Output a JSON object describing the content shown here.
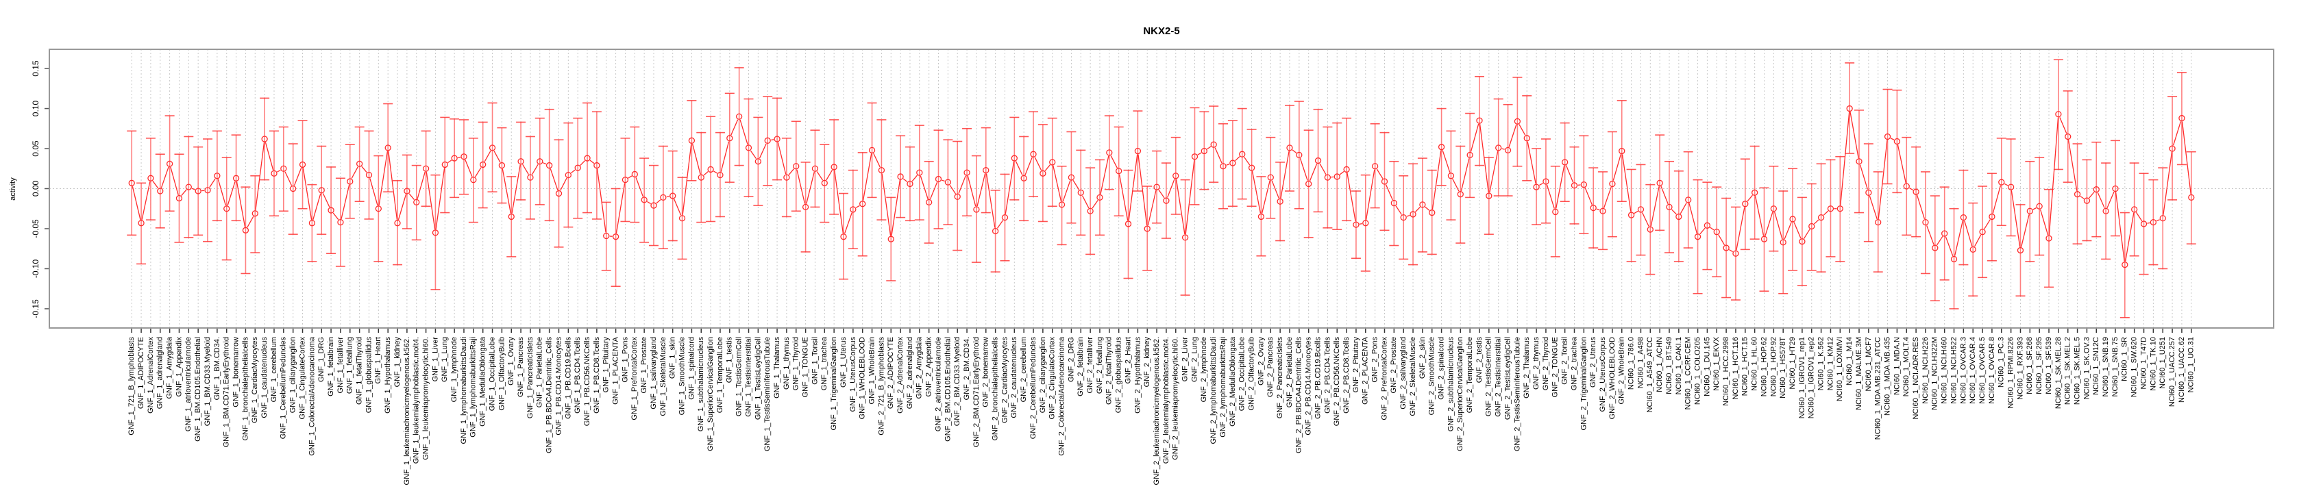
{
  "chart_data": {
    "type": "line",
    "title": "NKX2-5",
    "xlabel": "",
    "ylabel": "activity",
    "ylim": [
      -0.174,
      0.174
    ],
    "yticks": [
      "-0.15",
      "-0.10",
      "-0.05",
      "0.00",
      "0.05",
      "0.10",
      "0.15"
    ],
    "ytick_values": [
      -0.15,
      -0.1,
      -0.05,
      0.0,
      0.05,
      0.1,
      0.15
    ],
    "grid": "vertical dotted per category, horizontal dotted at 0",
    "colors": {
      "series": "#ff2a2a",
      "errorbar": "#ff8080",
      "grid": "#c8c8c8",
      "axis": "#555555",
      "frame": "#999999"
    },
    "categories": [
      "GNF_1_721_B_lymphoblasts",
      "GNF_1_ADIPOCYTE",
      "GNF_1_AdrenalCortex",
      "GNF_1_adrenalgland",
      "GNF_1_Amygdala",
      "GNF_1_Appendix",
      "GNF_1_atrioventricularnode",
      "GNF_1_BM.CD105.Endothelial",
      "GNF_1_BM.CD33.Myeloid",
      "GNF_1_BM.CD34.",
      "GNF_1_BM.CD71.EarlyErythroid",
      "GNF_1_bonemarrow",
      "GNF_1_bronchialepithelialcells",
      "GNF_1_CardiacMyocytes",
      "GNF_1_caudatenucleus",
      "GNF_1_cerebellum",
      "GNF_1_CerebellumPeduncles",
      "GNF_1_ciliaryganglion",
      "GNF_1_CingulateCortex",
      "GNF_1_ColorectalAdenocarcinoma",
      "GNF_1_DRG",
      "GNF_1_fetalbrain",
      "GNF_1_fetalliver",
      "GNF_1_fetallung",
      "GNF_1_fetalThyroid",
      "GNF_1_globuspallidus",
      "GNF_1_Heart",
      "GNF_1_Hypothalamus",
      "GNF_1_kidney",
      "GNF_1_leukemiachronicmyelogenous.k562.",
      "GNF_1_leukemialymphoblastic.molt4.",
      "GNF_1_leukemiapromyelocytic.hl60.",
      "GNF_1_Liver",
      "GNF_1_Lung",
      "GNF_1_lymphnode",
      "GNF_1_lymphomaburkittsDaudi",
      "GNF_1_lymphomaburkittsRaji",
      "GNF_1_MedullaOblongata",
      "GNF_1_OccipitalLobe",
      "GNF_1_OlfactoryBulb",
      "GNF_1_Ovary",
      "GNF_1_Pancreas",
      "GNF_1_PancreaticIslets",
      "GNF_1_ParietalLobe",
      "GNF_1_PB.BDCA4.Dentritic_Cells",
      "GNF_1_PB.CD14.Monocytes",
      "GNF_1_PB.CD19.Bcells",
      "GNF_1_PB.CD4.Tcells",
      "GNF_1_PB.CD56.NKCells",
      "GNF_1_PB.CD8.Tcells",
      "GNF_1_Pituitary",
      "GNF_1_PLACENTA",
      "GNF_1_Pons",
      "GNF_1_PrefrontalCortex",
      "GNF_1_Prostate",
      "GNF_1_salivarygland",
      "GNF_1_SkeletalMuscle",
      "GNF_1_skin",
      "GNF_1_SmoothMuscle",
      "GNF_1_spinalcord",
      "GNF_1_subthalamicnucleus",
      "GNF_1_SuperiorCervicalGanglion",
      "GNF_1_TemporalLobe",
      "GNF_1_testis",
      "GNF_1_TestisGermCell",
      "GNF_1_TestisInterstitial",
      "GNF_1_TestisLeydigCell",
      "GNF_1_TestisSeminiferousTubule",
      "GNF_1_Thalamus",
      "GNF_1_thymus",
      "GNF_1_Thyroid",
      "GNF_1_TONGUE",
      "GNF_1_Tonsil",
      "GNF_1_trachea",
      "GNF_1_TrigeminalGanglion",
      "GNF_1_Uterus",
      "GNF_1_UterusCorpus",
      "GNF_1_WHOLEBLOOD",
      "GNF_1_WholeBrain",
      "GNF_2_721_B_lymphoblasts",
      "GNF_2_ADIPOCYTE",
      "GNF_2_AdrenalCortex",
      "GNF_2_adrenalgland",
      "GNF_2_Amygdala",
      "GNF_2_Appendix",
      "GNF_2_atrioventricularnode",
      "GNF_2_BM.CD105.Endothelial",
      "GNF_2_BM.CD33.Myeloid",
      "GNF_2_BM.CD34.",
      "GNF_2_BM.CD71.EarlyErythroid",
      "GNF_2_bonemarrow",
      "GNF_2_bronchialepithelialcells",
      "GNF_2_CardiacMyocytes",
      "GNF_2_caudatenucleus",
      "GNF_2_cerebellum",
      "GNF_2_CerebellumPeduncles",
      "GNF_2_ciliaryganglion",
      "GNF_2_CingulateCortex",
      "GNF_2_ColorectalAdenocarcinoma",
      "GNF_2_DRG",
      "GNF_2_fetalbrain",
      "GNF_2_fetalliver",
      "GNF_2_fetallung",
      "GNF_2_fetalThyroid",
      "GNF_2_globuspallidus",
      "GNF_2_Heart",
      "GNF_2_Hypothalamus",
      "GNF_2_kidney",
      "GNF_2_leukemiachronicmyelogenous.k562.",
      "GNF_2_leukemialymphoblastic.molt4.",
      "GNF_2_leukemiapromyelocytic.hl60.",
      "GNF_2_Liver",
      "GNF_2_Lung",
      "GNF_2_lymphnode",
      "GNF_2_lymphomaburkittsDaudi",
      "GNF_2_lymphomaburkittsRaji",
      "GNF_2_MedullaOblongata",
      "GNF_2_OccipitalLobe",
      "GNF_2_OlfactoryBulb",
      "GNF_2_Ovary",
      "GNF_2_Pancreas",
      "GNF_2_PancreaticIslets",
      "GNF_2_ParietalLobe",
      "GNF_2_PB.BDCA4.Dentritic_Cells",
      "GNF_2_PB.CD14.Monocytes",
      "GNF_2_PB.CD19.Bcells",
      "GNF_2_PB.CD4.Tcells",
      "GNF_2_PB.CD56.NKCells",
      "GNF_2_PB.CD8.Tcells",
      "GNF_2_Pituitary",
      "GNF_2_PLACENTA",
      "GNF_2_Pons",
      "GNF_2_PrefrontalCortex",
      "GNF_2_Prostate",
      "GNF_2_salivarygland",
      "GNF_2_SkeletalMuscle",
      "GNF_2_skin",
      "GNF_2_SmoothMuscle",
      "GNF_2_spinalcord",
      "GNF_2_subthalamicnucleus",
      "GNF_2_SuperiorCervicalGanglion",
      "GNF_2_TemporalLobe",
      "GNF_2_testis",
      "GNF_2_TestisGermCell",
      "GNF_2_TestisInterstitial",
      "GNF_2_TestisLeydigCell",
      "GNF_2_TestisSeminiferousTubule",
      "GNF_2_Thalamus",
      "GNF_2_thymus",
      "GNF_2_Thyroid",
      "GNF_2_TONGUE",
      "GNF_2_Tonsil",
      "GNF_2_trachea",
      "GNF_2_TrigeminalGanglion",
      "GNF_2_Uterus",
      "GNF_2_UterusCorpus",
      "GNF_2_WHOLEBLOOD",
      "GNF_2_WholeBrain",
      "NCI60_1_786.0",
      "NCI60_1_A498",
      "NCI60_1_A549_ATCC",
      "NCI60_1_ACHN",
      "NCI60_1_BT.549",
      "NCI60_1_CAKI.1",
      "NCI60_1_CCRF.CEM",
      "NCI60_1_COLO205",
      "NCI60_1_DU.145",
      "NCI60_1_EKVX",
      "NCI60_1_HCC.2998",
      "NCI60_1_HCT.116",
      "NCI60_1_HCT.15",
      "NCI60_1_HL.60",
      "NCI60_1_HOP.62",
      "NCI60_1_HOP.92",
      "NCI60_1_HS578T",
      "NCI60_1_HT29",
      "NCI60_1_IGROV1_rep1",
      "NCI60_1_IGROV1_rep2",
      "NCI60_1_K.562",
      "NCI60_1_KM12",
      "NCI60_1_LOXIMVI",
      "NCI60_1_M14",
      "NCI60_1_MALME.3M",
      "NCI60_1_MCF7",
      "NCI60_1_MDA.MB.231_ATCC",
      "NCI60_1_MDA.MB.435",
      "NCI60_1_MDA.N",
      "NCI60_1_MOLT.4",
      "NCI60_1_NCI.ADR.RES",
      "NCI60_1_NCI.H226",
      "NCI60_1_NCI.H322M",
      "NCI60_1_NCI.H460",
      "NCI60_1_NCI.H522",
      "NCI60_1_OVCAR.3",
      "NCI60_1_OVCAR.4",
      "NCI60_1_OVCAR.5",
      "NCI60_1_OVCAR.8",
      "NCI60_1_PC.3",
      "NCI60_1_RPMI.8226",
      "NCI60_1_RXF.393",
      "NCI60_1_SF.268",
      "NCI60_1_SF.295",
      "NCI60_1_SF.539",
      "NCI60_1_SK.MEL.28",
      "NCI60_1_SK.MEL.2",
      "NCI60_1_SK.MEL.5",
      "NCI60_1_SK.OV.3",
      "NCI60_1_SN12C",
      "NCI60_1_SNB.19",
      "NCI60_1_SNB.75",
      "NCI60_1_SR",
      "NCI60_1_SW.620",
      "NCI60_1_T47D",
      "NCI60_1_TK.10",
      "NCI60_1_U251",
      "NCI60_1_UACC.257",
      "NCI60_1_UACC.62",
      "NCI60_1_UO.31"
    ],
    "series": [
      {
        "name": "activity",
        "values": [
          0.007,
          -0.043,
          0.013,
          -0.003,
          0.031,
          -0.012,
          0.002,
          -0.003,
          -0.002,
          0.016,
          -0.025,
          0.013,
          -0.052,
          -0.031,
          0.062,
          0.019,
          0.025,
          0.0,
          0.03,
          -0.043,
          -0.002,
          -0.027,
          -0.042,
          0.009,
          0.031,
          0.017,
          -0.025,
          0.051,
          -0.043,
          -0.003,
          -0.017,
          0.025,
          -0.055,
          0.03,
          0.038,
          0.04,
          0.011,
          0.03,
          0.051,
          0.029,
          -0.035,
          0.034,
          0.014,
          0.034,
          0.029,
          -0.006,
          0.017,
          0.026,
          0.038,
          0.029,
          -0.059,
          -0.06,
          0.011,
          0.018,
          -0.014,
          -0.021,
          -0.011,
          -0.009,
          -0.037,
          0.06,
          0.014,
          0.024,
          0.017,
          0.063,
          0.09,
          0.051,
          0.034,
          0.06,
          0.062,
          0.014,
          0.028,
          -0.023,
          0.025,
          0.007,
          0.027,
          -0.06,
          -0.026,
          -0.019,
          0.048,
          0.023,
          -0.063,
          0.015,
          0.006,
          0.02,
          -0.017,
          0.012,
          0.008,
          -0.01,
          0.02,
          -0.026,
          0.023,
          -0.053,
          -0.036,
          0.038,
          0.013,
          0.043,
          0.019,
          0.033,
          -0.02,
          0.014,
          -0.005,
          -0.028,
          -0.011,
          0.045,
          0.022,
          -0.044,
          0.047,
          -0.05,
          0.002,
          -0.015,
          0.016,
          -0.061,
          0.04,
          0.047,
          0.055,
          0.028,
          0.032,
          0.043,
          0.026,
          -0.035,
          0.014,
          -0.016,
          0.051,
          0.042,
          0.006,
          0.035,
          0.014,
          0.015,
          0.024,
          -0.045,
          -0.043,
          0.028,
          0.009,
          -0.018,
          -0.036,
          -0.032,
          -0.02,
          -0.03,
          0.052,
          0.016,
          -0.007,
          0.042,
          0.085,
          -0.009,
          0.051,
          0.048,
          0.084,
          0.063,
          0.002,
          0.009,
          -0.029,
          0.033,
          0.004,
          0.005,
          -0.024,
          -0.028,
          0.006,
          0.047,
          -0.033,
          -0.026,
          -0.051,
          0.007,
          -0.023,
          -0.035,
          -0.014,
          -0.06,
          -0.046,
          -0.054,
          -0.074,
          -0.081,
          -0.019,
          -0.005,
          -0.063,
          -0.025,
          -0.067,
          -0.038,
          -0.066,
          -0.047,
          -0.036,
          -0.025,
          -0.025,
          0.1,
          0.034,
          -0.005,
          -0.042,
          0.065,
          0.059,
          0.003,
          -0.004,
          -0.042,
          -0.074,
          -0.056,
          -0.088,
          -0.036,
          -0.076,
          -0.054,
          -0.035,
          0.008,
          0.002,
          -0.077,
          -0.028,
          -0.022,
          -0.062,
          0.093,
          0.065,
          -0.007,
          -0.015,
          -0.001,
          -0.028,
          0.0,
          -0.095,
          -0.026,
          -0.044,
          -0.042,
          -0.037,
          0.05,
          0.088,
          -0.011
        ],
        "upper": [
          0.072,
          0.007,
          0.063,
          0.043,
          0.091,
          0.043,
          0.065,
          0.052,
          0.062,
          0.072,
          0.039,
          0.067,
          0.002,
          0.016,
          0.113,
          0.072,
          0.077,
          0.056,
          0.085,
          0.005,
          0.053,
          0.027,
          0.013,
          0.055,
          0.077,
          0.072,
          0.041,
          0.106,
          0.01,
          0.042,
          0.029,
          0.072,
          0.017,
          0.089,
          0.087,
          0.086,
          0.063,
          0.083,
          0.107,
          0.076,
          0.015,
          0.083,
          0.065,
          0.088,
          0.099,
          0.061,
          0.082,
          0.088,
          0.107,
          0.096,
          -0.017,
          0.0,
          0.063,
          0.077,
          0.038,
          0.029,
          0.053,
          0.047,
          0.014,
          0.11,
          0.07,
          0.09,
          0.07,
          0.119,
          0.151,
          0.112,
          0.089,
          0.115,
          0.113,
          0.063,
          0.084,
          0.033,
          0.073,
          0.055,
          0.086,
          -0.006,
          0.023,
          0.045,
          0.107,
          0.086,
          -0.011,
          0.066,
          0.052,
          0.079,
          0.034,
          0.073,
          0.061,
          0.059,
          0.075,
          0.041,
          0.076,
          -0.002,
          0.018,
          0.089,
          0.065,
          0.096,
          0.08,
          0.088,
          0.028,
          0.071,
          0.048,
          0.026,
          0.036,
          0.091,
          0.077,
          0.023,
          0.097,
          0.003,
          0.047,
          0.032,
          0.064,
          0.011,
          0.101,
          0.096,
          0.103,
          0.081,
          0.085,
          0.1,
          0.074,
          0.015,
          0.064,
          0.033,
          0.104,
          0.109,
          0.073,
          0.099,
          0.077,
          0.082,
          0.088,
          -0.003,
          0.017,
          0.081,
          0.07,
          0.034,
          0.016,
          0.031,
          0.038,
          0.023,
          0.1,
          0.072,
          0.053,
          0.094,
          0.14,
          0.039,
          0.112,
          0.105,
          0.139,
          0.116,
          0.05,
          0.062,
          0.028,
          0.082,
          0.052,
          0.066,
          0.026,
          0.021,
          0.071,
          0.11,
          0.024,
          0.03,
          0.005,
          0.067,
          0.034,
          0.022,
          0.046,
          0.011,
          0.008,
          0.002,
          -0.012,
          -0.023,
          0.037,
          0.053,
          0.001,
          0.028,
          -0.003,
          0.025,
          -0.011,
          0.006,
          0.031,
          0.036,
          0.04,
          0.157,
          0.098,
          0.056,
          0.021,
          0.124,
          0.123,
          0.064,
          0.052,
          0.021,
          -0.009,
          0.002,
          -0.025,
          0.023,
          -0.018,
          0.003,
          0.019,
          0.063,
          0.062,
          -0.02,
          0.034,
          0.039,
          -0.001,
          0.161,
          0.122,
          0.056,
          0.036,
          0.058,
          0.032,
          0.06,
          -0.03,
          0.032,
          0.019,
          0.011,
          0.026,
          0.115,
          0.145,
          0.046
        ],
        "lower": [
          -0.058,
          -0.094,
          -0.039,
          -0.049,
          -0.028,
          -0.067,
          -0.061,
          -0.058,
          -0.066,
          -0.04,
          -0.089,
          -0.04,
          -0.106,
          -0.08,
          0.011,
          -0.034,
          -0.028,
          -0.057,
          -0.025,
          -0.091,
          -0.057,
          -0.081,
          -0.097,
          -0.037,
          -0.016,
          -0.038,
          -0.091,
          -0.004,
          -0.095,
          -0.05,
          -0.064,
          -0.022,
          -0.126,
          -0.03,
          -0.011,
          -0.007,
          -0.042,
          -0.024,
          -0.004,
          -0.018,
          -0.085,
          -0.014,
          -0.038,
          -0.02,
          -0.04,
          -0.073,
          -0.048,
          -0.037,
          -0.03,
          -0.038,
          -0.102,
          -0.122,
          -0.041,
          -0.042,
          -0.067,
          -0.071,
          -0.075,
          -0.065,
          -0.088,
          0.01,
          -0.042,
          -0.041,
          -0.035,
          0.008,
          0.029,
          -0.01,
          -0.021,
          0.004,
          0.011,
          -0.035,
          -0.028,
          -0.079,
          -0.023,
          -0.042,
          -0.032,
          -0.113,
          -0.075,
          -0.084,
          -0.011,
          -0.039,
          -0.115,
          -0.036,
          -0.04,
          -0.039,
          -0.068,
          -0.05,
          -0.045,
          -0.077,
          -0.034,
          -0.092,
          -0.03,
          -0.104,
          -0.09,
          -0.014,
          -0.04,
          -0.01,
          -0.041,
          -0.022,
          -0.07,
          -0.043,
          -0.058,
          -0.082,
          -0.058,
          -0.001,
          -0.034,
          -0.112,
          -0.003,
          -0.102,
          -0.043,
          -0.062,
          -0.032,
          -0.133,
          -0.02,
          -0.001,
          0.008,
          -0.025,
          -0.022,
          -0.013,
          -0.022,
          -0.084,
          -0.037,
          -0.065,
          -0.003,
          -0.025,
          -0.061,
          -0.029,
          -0.049,
          -0.051,
          -0.04,
          -0.087,
          -0.103,
          -0.024,
          -0.052,
          -0.071,
          -0.088,
          -0.095,
          -0.079,
          -0.082,
          0.004,
          -0.039,
          -0.068,
          -0.011,
          0.029,
          -0.057,
          -0.009,
          -0.009,
          0.028,
          0.01,
          -0.045,
          -0.043,
          -0.085,
          -0.016,
          -0.044,
          -0.056,
          -0.074,
          -0.076,
          -0.06,
          -0.016,
          -0.091,
          -0.083,
          -0.107,
          -0.052,
          -0.08,
          -0.091,
          -0.074,
          -0.131,
          -0.101,
          -0.11,
          -0.136,
          -0.139,
          -0.076,
          -0.063,
          -0.128,
          -0.078,
          -0.131,
          -0.102,
          -0.121,
          -0.102,
          -0.104,
          -0.085,
          -0.091,
          0.044,
          -0.03,
          -0.066,
          -0.104,
          0.006,
          -0.005,
          -0.058,
          -0.06,
          -0.106,
          -0.14,
          -0.114,
          -0.15,
          -0.095,
          -0.134,
          -0.111,
          -0.09,
          -0.046,
          -0.059,
          -0.134,
          -0.091,
          -0.083,
          -0.123,
          0.024,
          0.008,
          -0.069,
          -0.065,
          -0.06,
          -0.088,
          -0.059,
          -0.161,
          -0.084,
          -0.107,
          -0.095,
          -0.1,
          -0.014,
          0.03,
          -0.069
        ]
      }
    ]
  }
}
